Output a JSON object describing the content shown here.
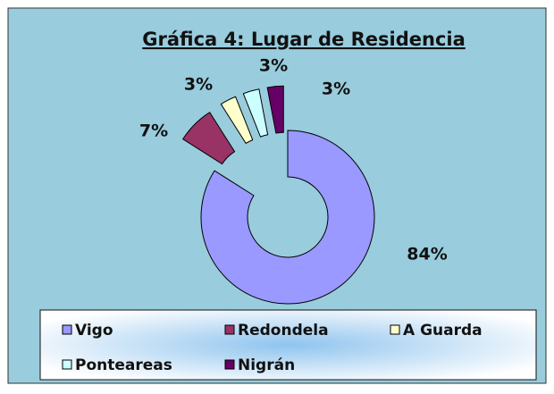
{
  "chart_data": {
    "type": "pie",
    "title": "Gráfica 4: Lugar de Residencia",
    "categories": [
      "Vigo",
      "Redondela",
      "A Guarda",
      "Ponteareas",
      "Nigrán"
    ],
    "values": [
      84,
      7,
      3,
      3,
      3
    ],
    "value_labels": [
      "84%",
      "7%",
      "3%",
      "3%",
      "3%"
    ],
    "colors": [
      "#9999ff",
      "#993366",
      "#ffffcc",
      "#ccffff",
      "#660066"
    ],
    "donut": true
  }
}
